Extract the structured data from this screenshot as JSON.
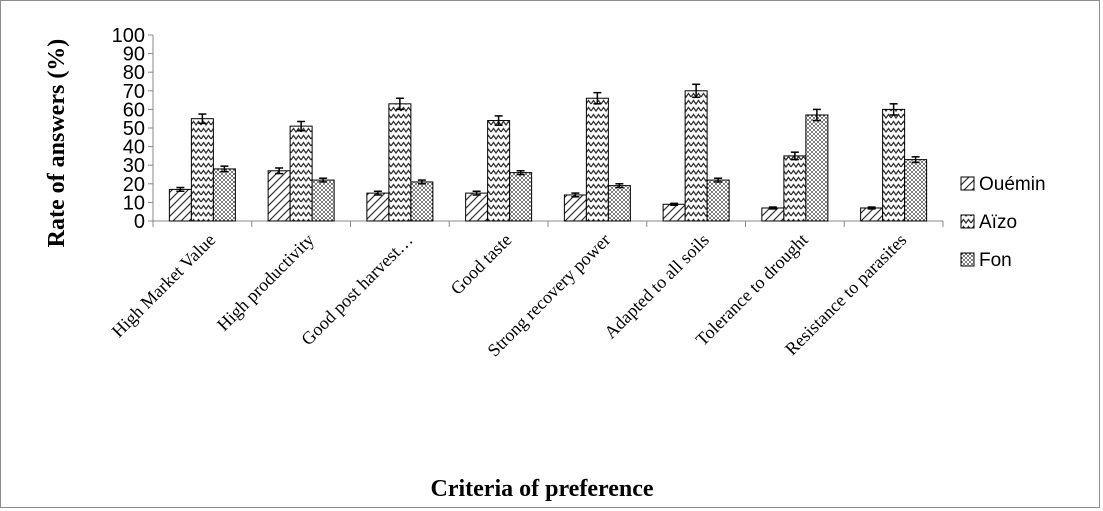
{
  "chart_data": {
    "type": "bar",
    "title": "",
    "xlabel": "Criteria of preference",
    "ylabel": "Rate of answers (%)",
    "ylim": [
      0,
      100
    ],
    "yticks": [
      0,
      10,
      20,
      30,
      40,
      50,
      60,
      70,
      80,
      90,
      100
    ],
    "grid": false,
    "legend_position": "right",
    "error_bars": true,
    "categories": [
      "High Market Value",
      "High productivity",
      "Good post harvest…",
      "Good taste",
      "Strong recovery power",
      "Adapted to all soils",
      "Tolerance to drought",
      "Resistance to parasites"
    ],
    "series": [
      {
        "name": "Ouémin",
        "pattern": "diagonal-hatch",
        "values": [
          17,
          27,
          15,
          15,
          14,
          9,
          7,
          7
        ],
        "errors": [
          1,
          1.5,
          1,
          1,
          1,
          0.5,
          0.5,
          0.5
        ]
      },
      {
        "name": "Aïzo",
        "pattern": "zigzag",
        "values": [
          55,
          51,
          63,
          54,
          66,
          70,
          35,
          60
        ],
        "errors": [
          2.5,
          2.5,
          3,
          2.5,
          3,
          3.5,
          2,
          3
        ]
      },
      {
        "name": "Fon",
        "pattern": "dots",
        "values": [
          28,
          22,
          21,
          26,
          19,
          22,
          57,
          33
        ],
        "errors": [
          1.5,
          1,
          1,
          1,
          1,
          1,
          3,
          1.5
        ]
      }
    ]
  }
}
